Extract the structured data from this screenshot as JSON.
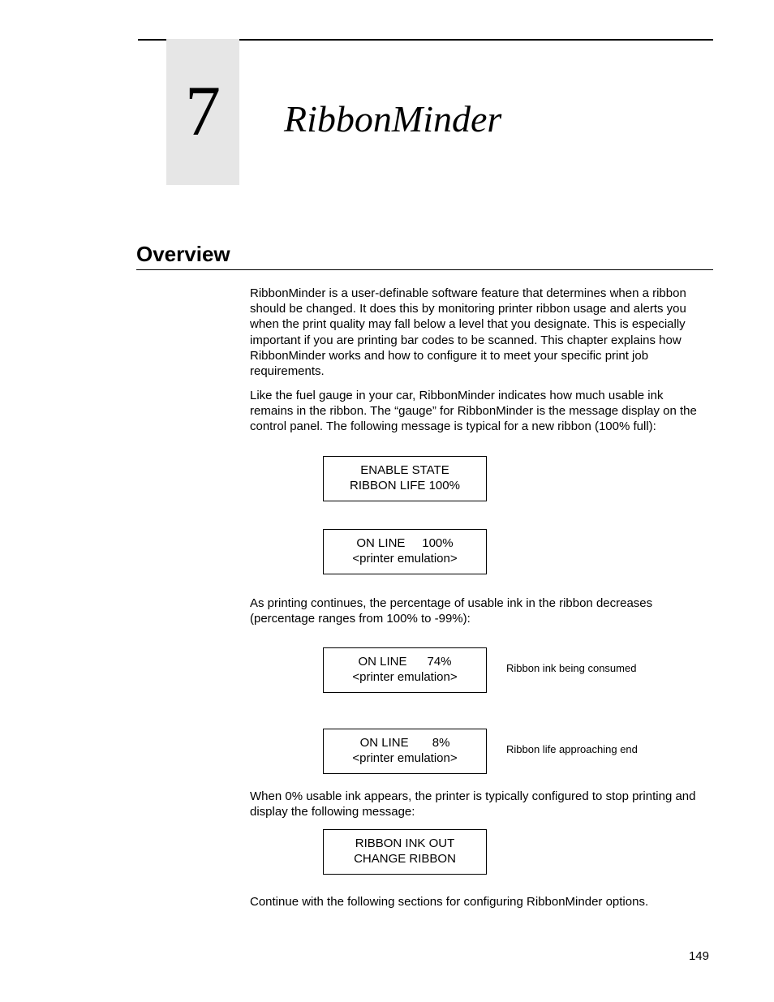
{
  "chapter": {
    "number": "7",
    "title": "RibbonMinder"
  },
  "section_heading": "Overview",
  "paragraphs": {
    "p1": "RibbonMinder is a user-definable software feature that determines when a ribbon should be changed. It does this by monitoring printer ribbon usage and alerts you when the print quality may fall below a level that you designate. This is especially important if you are printing bar codes to be scanned. This chapter explains how RibbonMinder works and how to configure it to meet your specific print job requirements.",
    "p2": "Like the fuel gauge in your car, RibbonMinder indicates how much usable ink remains in the ribbon. The “gauge” for RibbonMinder is the message display on the control panel. The following message is typical for a new ribbon (100% full):",
    "p3": "As printing continues, the percentage of usable ink in the ribbon decreases (percentage ranges from 100% to -99%):",
    "p4": "When 0% usable ink appears, the printer is typically configured to stop printing and display the following message:",
    "p5": "Continue with the following sections for configuring RibbonMinder options."
  },
  "displays": {
    "d1": {
      "line1": "ENABLE STATE",
      "line2": "RIBBON LIFE 100%"
    },
    "d2": {
      "line1": "ON LINE     100%",
      "line2": "<printer emulation>"
    },
    "d3": {
      "line1": "ON LINE      74%",
      "line2": "<printer emulation>"
    },
    "d4": {
      "line1": "ON LINE       8%",
      "line2": "<printer emulation>"
    },
    "d5": {
      "line1": "RIBBON INK OUT",
      "line2": "CHANGE RIBBON"
    }
  },
  "annotations": {
    "a1": "Ribbon ink being consumed",
    "a2": "Ribbon life approaching end"
  },
  "page_number": "149"
}
